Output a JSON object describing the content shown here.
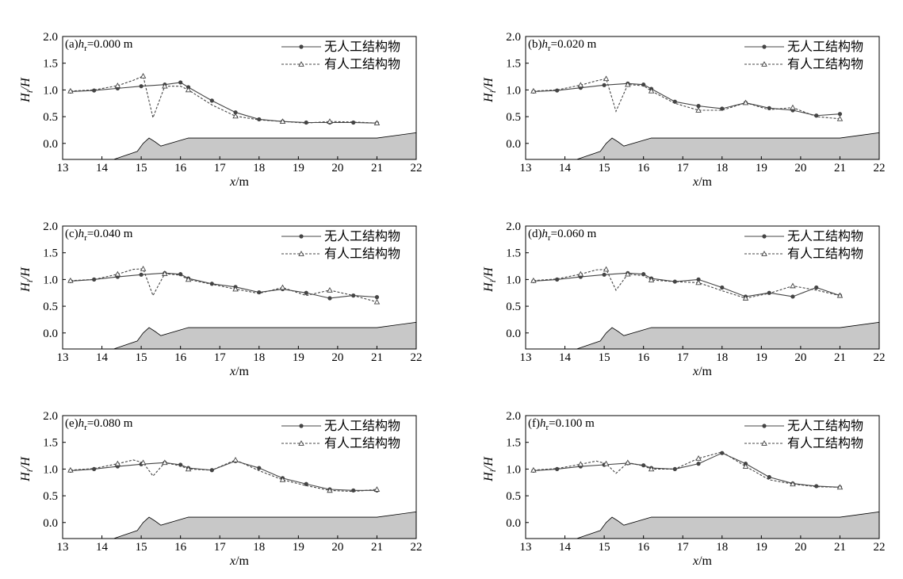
{
  "legend": {
    "without": "无人工结构物",
    "with": "有人工结构物"
  },
  "axes": {
    "xlabel_var": "x",
    "xlabel_unit": "/m",
    "ylabel_num": "H",
    "ylabel_sub": "i",
    "ylabel_den": "/H",
    "xticks": [
      "13",
      "14",
      "15",
      "16",
      "17",
      "18",
      "19",
      "20",
      "21",
      "22"
    ],
    "yticks": [
      "0.0",
      "0.5",
      "1.0",
      "1.5",
      "2.0"
    ]
  },
  "colors": {
    "line": "#444444",
    "bottom_fill": "#c8c8c8",
    "frame": "#000000"
  },
  "chart_data": [
    {
      "type": "line",
      "title_prefix": "(a)",
      "var": "h",
      "sub": "r",
      "value_text": "=0.000 m",
      "xlim": [
        13,
        22
      ],
      "ylim": [
        -0.3,
        2.0
      ],
      "bottom": {
        "x": [
          14.3,
          14.9,
          15.05,
          15.2,
          15.35,
          15.5,
          16.2,
          21.0,
          22.0
        ],
        "y": [
          -0.3,
          -0.15,
          0.0,
          0.1,
          0.03,
          -0.05,
          0.1,
          0.1,
          0.2
        ]
      },
      "series": [
        {
          "name": "无人工结构物",
          "marker": "circle",
          "dash": false,
          "x": [
            13.2,
            13.8,
            14.4,
            15.0,
            15.6,
            16.0,
            16.2,
            16.8,
            17.4,
            18.0,
            18.6,
            19.2,
            19.8,
            20.4,
            21.0
          ],
          "y": [
            0.97,
            0.99,
            1.03,
            1.07,
            1.1,
            1.14,
            1.05,
            0.8,
            0.58,
            0.45,
            0.41,
            0.39,
            0.39,
            0.39,
            0.38
          ]
        },
        {
          "name": "有人工结构物",
          "marker": "triangle",
          "dash": true,
          "x": [
            13.2,
            13.8,
            14.4,
            14.8,
            15.05,
            15.3,
            15.6,
            16.0,
            16.2,
            16.8,
            17.4,
            18.0,
            18.6,
            19.2,
            19.8,
            20.4,
            21.0
          ],
          "y": [
            0.98,
            1.0,
            1.08,
            1.18,
            1.26,
            0.48,
            1.07,
            1.07,
            1.0,
            0.72,
            0.51,
            0.44,
            0.41,
            0.38,
            0.41,
            0.4,
            0.38
          ]
        }
      ]
    },
    {
      "type": "line",
      "title_prefix": "(b)",
      "var": "h",
      "sub": "r",
      "value_text": "=0.020 m",
      "xlim": [
        13,
        22
      ],
      "ylim": [
        -0.3,
        2.0
      ],
      "bottom": {
        "x": [
          14.3,
          14.9,
          15.05,
          15.2,
          15.35,
          15.5,
          16.2,
          21.0,
          22.0
        ],
        "y": [
          -0.3,
          -0.15,
          0.0,
          0.1,
          0.03,
          -0.05,
          0.1,
          0.1,
          0.2
        ]
      },
      "series": [
        {
          "name": "无人工结构物",
          "marker": "circle",
          "dash": false,
          "x": [
            13.2,
            13.8,
            14.4,
            15.0,
            15.6,
            16.0,
            16.2,
            16.8,
            17.4,
            18.0,
            18.6,
            19.2,
            19.8,
            20.4,
            21.0
          ],
          "y": [
            0.97,
            0.99,
            1.04,
            1.09,
            1.12,
            1.1,
            1.02,
            0.78,
            0.7,
            0.65,
            0.76,
            0.66,
            0.62,
            0.52,
            0.55
          ]
        },
        {
          "name": "有人工结构物",
          "marker": "triangle",
          "dash": true,
          "x": [
            13.2,
            13.8,
            14.4,
            14.8,
            15.05,
            15.3,
            15.6,
            16.0,
            16.2,
            16.8,
            17.4,
            18.0,
            18.6,
            19.2,
            19.8,
            20.4,
            21.0
          ],
          "y": [
            0.98,
            1.0,
            1.09,
            1.17,
            1.21,
            0.6,
            1.1,
            1.08,
            0.98,
            0.75,
            0.62,
            0.62,
            0.76,
            0.63,
            0.67,
            0.5,
            0.46
          ]
        }
      ]
    },
    {
      "type": "line",
      "title_prefix": "(c)",
      "var": "h",
      "sub": "r",
      "value_text": "=0.040 m",
      "xlim": [
        13,
        22
      ],
      "ylim": [
        -0.3,
        2.0
      ],
      "bottom": {
        "x": [
          14.3,
          14.9,
          15.05,
          15.2,
          15.35,
          15.5,
          16.2,
          21.0,
          22.0
        ],
        "y": [
          -0.3,
          -0.15,
          0.0,
          0.1,
          0.03,
          -0.05,
          0.1,
          0.1,
          0.2
        ]
      },
      "series": [
        {
          "name": "无人工结构物",
          "marker": "circle",
          "dash": false,
          "x": [
            13.2,
            13.8,
            14.4,
            15.0,
            15.6,
            16.0,
            16.2,
            16.8,
            17.4,
            18.0,
            18.6,
            19.2,
            19.8,
            20.4,
            21.0
          ],
          "y": [
            0.97,
            1.0,
            1.05,
            1.09,
            1.12,
            1.1,
            1.02,
            0.92,
            0.86,
            0.76,
            0.82,
            0.75,
            0.65,
            0.7,
            0.67
          ]
        },
        {
          "name": "有人工结构物",
          "marker": "triangle",
          "dash": true,
          "x": [
            13.2,
            13.8,
            14.4,
            14.8,
            15.05,
            15.3,
            15.6,
            16.0,
            16.2,
            16.8,
            17.4,
            18.0,
            18.6,
            19.2,
            19.8,
            20.4,
            21.0
          ],
          "y": [
            0.98,
            1.0,
            1.1,
            1.19,
            1.2,
            0.7,
            1.11,
            1.08,
            1.0,
            0.91,
            0.82,
            0.74,
            0.85,
            0.7,
            0.8,
            0.7,
            0.58
          ]
        }
      ]
    },
    {
      "type": "line",
      "title_prefix": "(d)",
      "var": "h",
      "sub": "r",
      "value_text": "=0.060 m",
      "xlim": [
        13,
        22
      ],
      "ylim": [
        -0.3,
        2.0
      ],
      "bottom": {
        "x": [
          14.3,
          14.9,
          15.05,
          15.2,
          15.35,
          15.5,
          16.2,
          21.0,
          22.0
        ],
        "y": [
          -0.3,
          -0.15,
          0.0,
          0.1,
          0.03,
          -0.05,
          0.1,
          0.1,
          0.2
        ]
      },
      "series": [
        {
          "name": "无人工结构物",
          "marker": "circle",
          "dash": false,
          "x": [
            13.2,
            13.8,
            14.4,
            15.0,
            15.6,
            16.0,
            16.2,
            16.8,
            17.4,
            18.0,
            18.6,
            19.2,
            19.8,
            20.4,
            21.0
          ],
          "y": [
            0.97,
            1.0,
            1.05,
            1.09,
            1.12,
            1.1,
            1.02,
            0.96,
            1.0,
            0.85,
            0.68,
            0.75,
            0.68,
            0.85,
            0.7
          ]
        },
        {
          "name": "有人工结构物",
          "marker": "triangle",
          "dash": true,
          "x": [
            13.2,
            13.8,
            14.4,
            14.8,
            15.05,
            15.3,
            15.6,
            16.0,
            16.2,
            16.8,
            17.4,
            18.0,
            18.6,
            19.2,
            19.8,
            20.4,
            21.0
          ],
          "y": [
            0.98,
            1.01,
            1.1,
            1.18,
            1.19,
            0.8,
            1.1,
            1.07,
            0.99,
            0.96,
            0.94,
            0.79,
            0.65,
            0.74,
            0.88,
            0.8,
            0.7
          ]
        }
      ]
    },
    {
      "type": "line",
      "title_prefix": "(e)",
      "var": "h",
      "sub": "r",
      "value_text": "=0.080 m",
      "xlim": [
        13,
        22
      ],
      "ylim": [
        -0.3,
        2.0
      ],
      "bottom": {
        "x": [
          14.3,
          14.9,
          15.05,
          15.2,
          15.35,
          15.5,
          16.2,
          21.0,
          22.0
        ],
        "y": [
          -0.3,
          -0.15,
          0.0,
          0.1,
          0.03,
          -0.05,
          0.1,
          0.1,
          0.2
        ]
      },
      "series": [
        {
          "name": "无人工结构物",
          "marker": "circle",
          "dash": false,
          "x": [
            13.2,
            13.8,
            14.4,
            15.0,
            15.6,
            16.0,
            16.2,
            16.8,
            17.4,
            18.0,
            18.6,
            19.2,
            19.8,
            20.4,
            21.0
          ],
          "y": [
            0.97,
            1.0,
            1.05,
            1.09,
            1.12,
            1.08,
            1.02,
            0.98,
            1.15,
            1.02,
            0.83,
            0.72,
            0.62,
            0.6,
            0.6
          ]
        },
        {
          "name": "有人工结构物",
          "marker": "triangle",
          "dash": true,
          "x": [
            13.2,
            13.8,
            14.4,
            14.8,
            15.05,
            15.3,
            15.6,
            16.0,
            16.2,
            16.8,
            17.4,
            18.0,
            18.6,
            19.2,
            19.8,
            20.4,
            21.0
          ],
          "y": [
            0.98,
            1.01,
            1.1,
            1.17,
            1.12,
            0.87,
            1.12,
            1.06,
            1.0,
            0.98,
            1.17,
            0.97,
            0.8,
            0.69,
            0.6,
            0.58,
            0.62
          ]
        }
      ]
    },
    {
      "type": "line",
      "title_prefix": "(f)",
      "var": "h",
      "sub": "r",
      "value_text": "=0.100 m",
      "xlim": [
        13,
        22
      ],
      "ylim": [
        -0.3,
        2.0
      ],
      "bottom": {
        "x": [
          14.3,
          14.9,
          15.05,
          15.2,
          15.35,
          15.5,
          16.2,
          21.0,
          22.0
        ],
        "y": [
          -0.3,
          -0.15,
          0.0,
          0.1,
          0.03,
          -0.05,
          0.1,
          0.1,
          0.2
        ]
      },
      "series": [
        {
          "name": "无人工结构物",
          "marker": "circle",
          "dash": false,
          "x": [
            13.2,
            13.8,
            14.4,
            15.0,
            15.6,
            16.0,
            16.2,
            16.8,
            17.4,
            18.0,
            18.6,
            19.2,
            19.8,
            20.4,
            21.0
          ],
          "y": [
            0.97,
            1.0,
            1.05,
            1.08,
            1.11,
            1.07,
            1.02,
            1.0,
            1.1,
            1.3,
            1.1,
            0.85,
            0.73,
            0.68,
            0.66
          ]
        },
        {
          "name": "有人工结构物",
          "marker": "triangle",
          "dash": true,
          "x": [
            13.2,
            13.8,
            14.4,
            14.8,
            15.05,
            15.3,
            15.6,
            16.0,
            16.2,
            16.8,
            17.4,
            18.0,
            18.6,
            19.2,
            19.8,
            20.4,
            21.0
          ],
          "y": [
            0.98,
            1.01,
            1.09,
            1.15,
            1.1,
            0.92,
            1.12,
            1.06,
            1.0,
            1.0,
            1.2,
            1.32,
            1.05,
            0.8,
            0.72,
            0.67,
            0.66
          ]
        }
      ]
    }
  ]
}
